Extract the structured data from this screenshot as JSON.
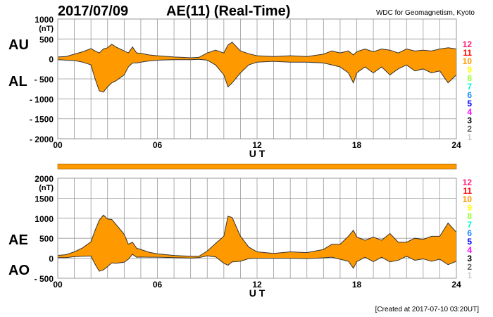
{
  "header": {
    "date": "2017/07/09",
    "title": "AE(11) (Real-Time)",
    "source": "WDC for Geomagnetism, Kyoto"
  },
  "footer": {
    "created": "[Created at 2017-07-10 03:20UT]"
  },
  "legend": {
    "labels": [
      "12",
      "11",
      "10",
      "9",
      "8",
      "7",
      "6",
      "5",
      "4",
      "3",
      "2",
      "1"
    ],
    "colors": [
      "#ff1a75",
      "#ff0000",
      "#ff9900",
      "#ffff00",
      "#99ff33",
      "#00ffcc",
      "#1a8cff",
      "#0000ff",
      "#ff00ff",
      "#000000",
      "#666666",
      "#cccccc"
    ]
  },
  "colors": {
    "fill": "#ff9900",
    "outline": "#333333",
    "grid": "#999999",
    "bar": "#ff9900"
  },
  "chart_data": [
    {
      "type": "area",
      "name": "AU/AL",
      "label_upper": "AU",
      "label_lower": "AL",
      "unit": "(nT)",
      "xlabel": "U T",
      "xlim": [
        0,
        24
      ],
      "ylim": [
        -2000,
        1000
      ],
      "yticks": [
        1000,
        500,
        0,
        -500,
        -1000,
        -1500,
        -2000
      ],
      "ytick_labels": [
        "1000",
        "500",
        "0",
        "- 500",
        "- 1000",
        "- 1500",
        "- 2000"
      ],
      "xticks": [
        0,
        6,
        12,
        18,
        24
      ],
      "xtick_labels": [
        "00",
        "06",
        "12",
        "18",
        "24"
      ],
      "grid": true,
      "x": [
        0,
        0.5,
        1,
        1.5,
        2,
        2.25,
        2.5,
        2.75,
        3,
        3.25,
        3.5,
        4,
        4.25,
        4.5,
        4.75,
        5,
        5.5,
        6,
        7,
        8,
        8.5,
        9,
        9.5,
        10,
        10.25,
        10.5,
        11,
        11.5,
        12,
        13,
        14,
        15,
        16,
        16.5,
        17,
        17.5,
        17.8,
        18,
        18.5,
        19,
        19.5,
        20,
        20.5,
        21,
        21.5,
        22,
        22.5,
        23,
        23.5,
        24
      ],
      "series": [
        {
          "name": "AU",
          "values": [
            50,
            60,
            120,
            180,
            260,
            200,
            150,
            250,
            280,
            370,
            300,
            200,
            150,
            300,
            150,
            140,
            100,
            80,
            50,
            30,
            40,
            150,
            220,
            150,
            350,
            420,
            200,
            130,
            80,
            60,
            80,
            60,
            120,
            200,
            150,
            200,
            100,
            180,
            250,
            180,
            250,
            220,
            150,
            250,
            200,
            220,
            200,
            250,
            280,
            250
          ]
        },
        {
          "name": "AL",
          "values": [
            -20,
            -30,
            -40,
            -80,
            -150,
            -500,
            -800,
            -830,
            -700,
            -600,
            -550,
            -400,
            -200,
            -100,
            -100,
            -80,
            -50,
            -30,
            -20,
            -20,
            -10,
            -30,
            -150,
            -400,
            -700,
            -600,
            -350,
            -150,
            -80,
            -60,
            -80,
            -80,
            -100,
            -150,
            -200,
            -350,
            -600,
            -350,
            -200,
            -350,
            -200,
            -400,
            -250,
            -150,
            -300,
            -250,
            -350,
            -300,
            -600,
            -400
          ]
        }
      ]
    },
    {
      "type": "area",
      "name": "AE/AO",
      "label_upper": "AE",
      "label_lower": "AO",
      "unit": "(nT)",
      "xlabel": "U T",
      "xlim": [
        0,
        24
      ],
      "ylim": [
        -500,
        2000
      ],
      "yticks": [
        2000,
        1500,
        1000,
        500,
        0,
        -500
      ],
      "ytick_labels": [
        "2000",
        "1500",
        "1000",
        "500",
        "0",
        "- 500"
      ],
      "xticks": [
        0,
        6,
        12,
        18,
        24
      ],
      "xtick_labels": [
        "00",
        "06",
        "12",
        "18",
        "24"
      ],
      "grid": true,
      "derived": "AE = AU - AL, AO = (AU + AL) / 2"
    }
  ]
}
